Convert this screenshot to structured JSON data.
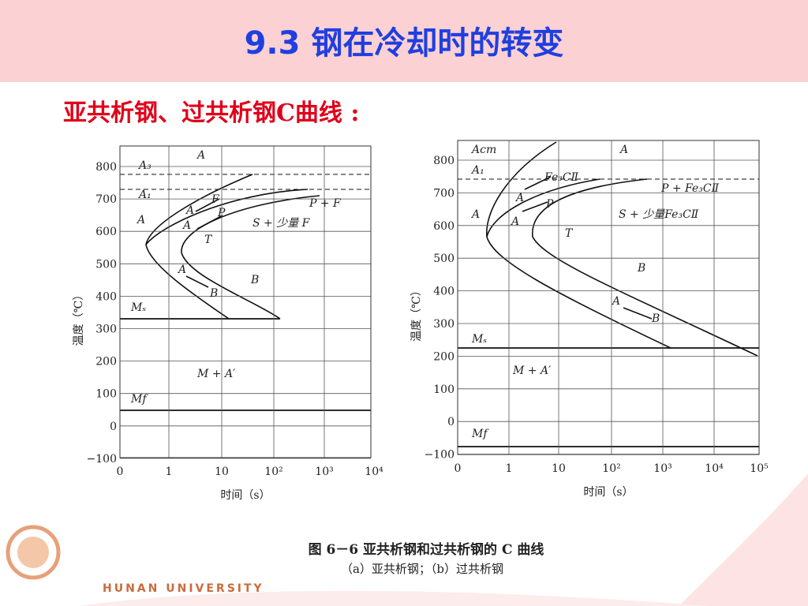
{
  "header": {
    "title": "9.3  钢在冷却时的转变"
  },
  "subtitle": "亚共析钢、过共析钢C曲线 :",
  "figure": {
    "panels": [
      {
        "y_label": "温度（℃）",
        "x_label": "时间（s）",
        "yticks": [
          "800",
          "700",
          "600",
          "500",
          "400",
          "300",
          "200",
          "100",
          "0",
          "−100"
        ],
        "xticks": [
          "0",
          "1",
          "10",
          "10²",
          "10³",
          "10⁴"
        ],
        "labels": [
          "A",
          "A₃",
          "A₁",
          "A",
          "F",
          "A",
          "P",
          "A",
          "T",
          "P + F",
          "S + 少量 F",
          "A",
          "B",
          "B",
          "Mₛ",
          "M + A′",
          "Mf"
        ]
      },
      {
        "y_label": "温度（℃）",
        "x_label": "时间（s）",
        "yticks": [
          "800",
          "700",
          "600",
          "500",
          "400",
          "300",
          "200",
          "100",
          "0",
          "−100"
        ],
        "xticks": [
          "0",
          "1",
          "10",
          "10²",
          "10³",
          "10⁴",
          "10⁵"
        ],
        "labels": [
          "Acm",
          "A",
          "A₁",
          "Fe₃CⅡ",
          "A",
          "P + Fe₃CⅡ",
          "A",
          "A",
          "P",
          "S + 少量Fe₃CⅡ",
          "T",
          "B",
          "A",
          "B",
          "Mₛ",
          "M + A′",
          "Mf"
        ]
      }
    ],
    "caption": "图 6－6   亚共析钢和过共析钢的 C 曲线",
    "subcaption": "（a）亚共析钢；（b）过共析钢"
  },
  "footer": "HUNAN UNIVERSITY"
}
